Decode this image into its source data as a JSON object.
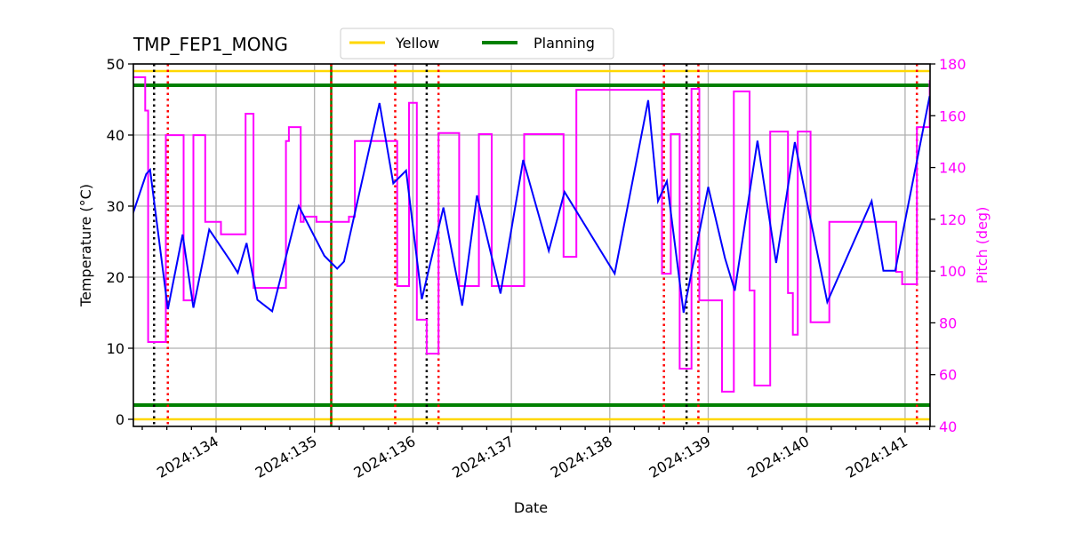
{
  "chart_data": {
    "type": "line",
    "title": "TMP_FEP1_MONG",
    "xlabel": "Date",
    "ylabel": "Temperature ($^\\circ$C)",
    "ylabel_display": "Temperature (°C)",
    "y2label": "Pitch (deg)",
    "xlim": [
      133.06,
      141.25
    ],
    "ylim": [
      -1,
      50
    ],
    "y2lim": [
      40,
      180
    ],
    "grid": true,
    "legend_position": "top center, above plot",
    "x_ticks": [
      {
        "value": 134,
        "label": "2024:134"
      },
      {
        "value": 135,
        "label": "2024:135"
      },
      {
        "value": 136,
        "label": "2024:136"
      },
      {
        "value": 137,
        "label": "2024:137"
      },
      {
        "value": 138,
        "label": "2024:138"
      },
      {
        "value": 139,
        "label": "2024:139"
      },
      {
        "value": 140,
        "label": "2024:140"
      },
      {
        "value": 141,
        "label": "2024:141"
      }
    ],
    "y_ticks": [
      0,
      10,
      20,
      30,
      40,
      50
    ],
    "y2_ticks": [
      40,
      60,
      80,
      100,
      120,
      140,
      160,
      180
    ],
    "legend": [
      {
        "name": "Yellow",
        "color": "#ffd700"
      },
      {
        "name": "Planning",
        "color": "#008000"
      }
    ],
    "limits": [
      {
        "name": "Yellow",
        "color": "#ffd700",
        "values": [
          0,
          49
        ]
      },
      {
        "name": "Planning",
        "color": "#008000",
        "values": [
          2,
          47
        ]
      }
    ],
    "series": [
      {
        "name": "Temperature",
        "axis": "left",
        "color": "#0000ff",
        "x": [
          133.06,
          133.29,
          133.33,
          133.51,
          133.66,
          133.77,
          133.93,
          134.15,
          134.22,
          134.31,
          134.42,
          134.57,
          134.84,
          135.1,
          135.23,
          135.3,
          135.66,
          135.8,
          135.93,
          136.09,
          136.31,
          136.5,
          136.65,
          136.89,
          137.12,
          137.38,
          137.54,
          138.05,
          138.39,
          138.49,
          138.58,
          138.75,
          139.0,
          139.17,
          139.27,
          139.5,
          139.69,
          139.88,
          140.21,
          140.66,
          140.78,
          140.9,
          141.25
        ],
        "values": [
          25.0,
          34.5,
          35.1,
          15.5,
          26.0,
          15.7,
          26.7,
          22.2,
          20.6,
          24.8,
          16.8,
          15.2,
          30.0,
          23.0,
          21.2,
          22.2,
          44.5,
          33.2,
          35.0,
          16.9,
          29.8,
          16.0,
          31.5,
          17.7,
          36.5,
          23.7,
          32.0,
          20.5,
          44.9,
          30.7,
          33.5,
          15.0,
          32.7,
          22.7,
          18.1,
          39.2,
          22.0,
          39.0,
          16.5,
          30.7,
          20.9,
          20.9,
          45.5
        ]
      },
      {
        "name": "Pitch",
        "axis": "right",
        "color": "#ff00ff",
        "step": true,
        "x": [
          133.06,
          133.09,
          133.28,
          133.31,
          133.34,
          133.49,
          133.67,
          133.77,
          133.81,
          133.89,
          134.05,
          134.3,
          134.36,
          134.38,
          134.43,
          134.71,
          134.74,
          134.86,
          134.89,
          135.02,
          135.35,
          135.41,
          135.45,
          135.84,
          135.96,
          136.04,
          136.14,
          136.26,
          136.47,
          136.67,
          136.8,
          137.13,
          137.53,
          137.66,
          138.53,
          138.62,
          138.71,
          138.83,
          138.91,
          139.14,
          139.26,
          139.42,
          139.47,
          139.63,
          139.81,
          139.86,
          139.91,
          140.04,
          140.23,
          140.91,
          140.97,
          141.12,
          141.25
        ],
        "values": [
          120,
          174.9,
          162,
          72.6,
          72.6,
          152.5,
          88.7,
          152.5,
          152.5,
          119,
          114.2,
          160.8,
          160.8,
          93.5,
          93.5,
          150.2,
          155.6,
          119,
          121,
          119,
          121,
          150.2,
          150.2,
          94.2,
          165,
          81.2,
          68.1,
          153.3,
          94.2,
          152.9,
          94.2,
          152.9,
          105.5,
          170,
          99,
          152.9,
          62.3,
          170.4,
          88.7,
          53.4,
          169.4,
          92.5,
          55.8,
          153.9,
          91.5,
          75.4,
          153.9,
          80.2,
          119,
          99.7,
          94.9,
          155.6,
          173.8
        ]
      }
    ],
    "vertical_markers": [
      {
        "x": 133.07,
        "style": "dotted",
        "color": "#ff0000"
      },
      {
        "x": 133.37,
        "style": "dotted",
        "color": "#000000"
      },
      {
        "x": 133.51,
        "style": "dotted",
        "color": "#ff0000"
      },
      {
        "x": 135.17,
        "style": "solid",
        "color": "#008000"
      },
      {
        "x": 135.17,
        "style": "dotted",
        "color": "#ff0000"
      },
      {
        "x": 135.82,
        "style": "dotted",
        "color": "#ff0000"
      },
      {
        "x": 136.14,
        "style": "dotted",
        "color": "#000000"
      },
      {
        "x": 136.26,
        "style": "dotted",
        "color": "#ff0000"
      },
      {
        "x": 138.55,
        "style": "dotted",
        "color": "#ff0000"
      },
      {
        "x": 138.78,
        "style": "dotted",
        "color": "#000000"
      },
      {
        "x": 138.9,
        "style": "dotted",
        "color": "#ff0000"
      },
      {
        "x": 141.12,
        "style": "dotted",
        "color": "#ff0000"
      }
    ]
  },
  "colors": {
    "temperature": "#0000ff",
    "pitch": "#ff00ff",
    "yellow": "#ffd700",
    "planning": "#008000",
    "grid": "#b0b0b0"
  }
}
